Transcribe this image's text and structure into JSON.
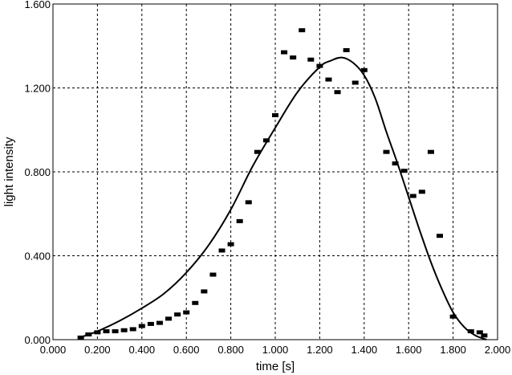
{
  "chart_data": {
    "type": "scatter",
    "title": "",
    "xlabel": "time [s]",
    "ylabel": "light intensity",
    "xlim": [
      0.0,
      2.0
    ],
    "ylim": [
      0.0,
      1.6
    ],
    "x_ticks": [
      "0.000",
      "0.200",
      "0.400",
      "0.600",
      "0.800",
      "1.000",
      "1.200",
      "1.400",
      "1.600",
      "1.800",
      "2.000"
    ],
    "y_ticks": [
      "0.000",
      "0.400",
      "0.800",
      "1.200",
      "1.600"
    ],
    "grid": true,
    "series": [
      {
        "kind": "points",
        "marker": "rect",
        "color": "#000000",
        "x": [
          0.125,
          0.16,
          0.2,
          0.24,
          0.28,
          0.32,
          0.36,
          0.4,
          0.44,
          0.48,
          0.52,
          0.56,
          0.6,
          0.64,
          0.68,
          0.72,
          0.76,
          0.8,
          0.84,
          0.88,
          0.92,
          0.96,
          1.0,
          1.04,
          1.08,
          1.12,
          1.16,
          1.2,
          1.24,
          1.28,
          1.32,
          1.36,
          1.4,
          1.5,
          1.54,
          1.58,
          1.62,
          1.66,
          1.7,
          1.74,
          1.8,
          1.88,
          1.92,
          1.94
        ],
        "y": [
          0.01,
          0.025,
          0.035,
          0.04,
          0.04,
          0.045,
          0.05,
          0.065,
          0.075,
          0.08,
          0.1,
          0.12,
          0.13,
          0.175,
          0.23,
          0.31,
          0.425,
          0.455,
          0.565,
          0.655,
          0.895,
          0.95,
          1.07,
          1.37,
          1.345,
          1.475,
          1.335,
          1.305,
          1.24,
          1.18,
          1.38,
          1.225,
          1.285,
          0.895,
          0.84,
          0.805,
          0.685,
          0.705,
          0.895,
          0.495,
          0.11,
          0.04,
          0.035,
          0.02
        ]
      },
      {
        "kind": "line",
        "color": "#000000",
        "x": [
          0.12,
          0.2,
          0.3,
          0.4,
          0.5,
          0.6,
          0.7,
          0.8,
          0.9,
          1.0,
          1.1,
          1.2,
          1.25,
          1.3,
          1.35,
          1.4,
          1.45,
          1.5,
          1.55,
          1.6,
          1.65,
          1.7,
          1.75,
          1.8,
          1.85,
          1.9,
          1.95
        ],
        "y": [
          0.01,
          0.04,
          0.09,
          0.15,
          0.22,
          0.32,
          0.45,
          0.62,
          0.83,
          1.01,
          1.18,
          1.3,
          1.33,
          1.345,
          1.32,
          1.26,
          1.15,
          0.99,
          0.84,
          0.68,
          0.52,
          0.37,
          0.24,
          0.13,
          0.06,
          0.02,
          0.0
        ]
      }
    ]
  }
}
